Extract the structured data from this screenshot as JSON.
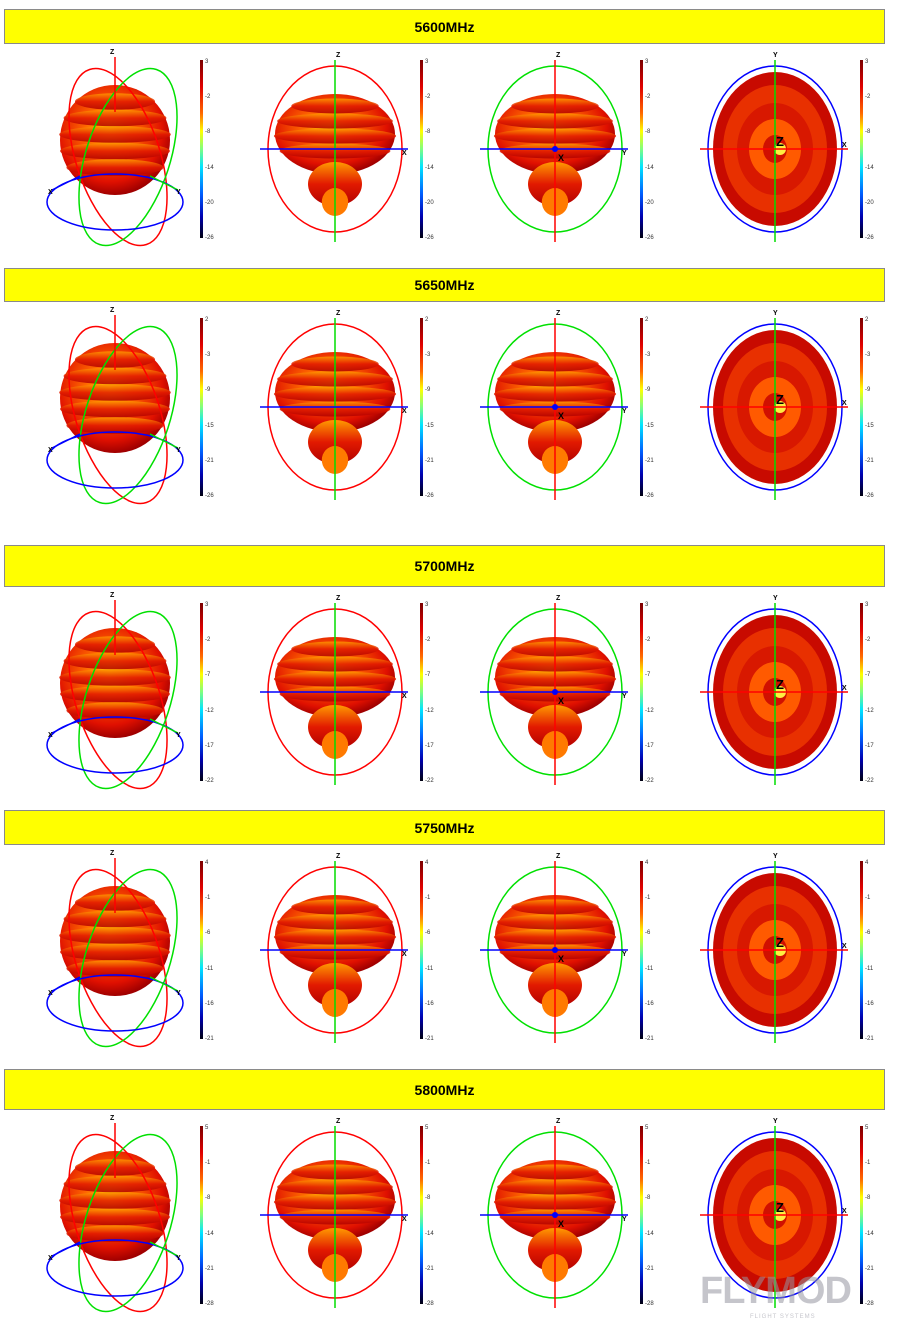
{
  "sections": [
    {
      "title": "5600MHz",
      "colorbar_ticks": [
        "3",
        "-2",
        "-8",
        "-14",
        "-20",
        "-26"
      ]
    },
    {
      "title": "5650MHz",
      "colorbar_ticks": [
        "2",
        "-3",
        "-9",
        "-15",
        "-21",
        "-26"
      ]
    },
    {
      "title": "5700MHz",
      "colorbar_ticks": [
        "3",
        "-2",
        "-7",
        "-12",
        "-17",
        "-22"
      ]
    },
    {
      "title": "5750MHz",
      "colorbar_ticks": [
        "4",
        "-1",
        "-6",
        "-11",
        "-16",
        "-21"
      ]
    },
    {
      "title": "5800MHz",
      "colorbar_ticks": [
        "5",
        "-1",
        "-8",
        "-14",
        "-21",
        "-28"
      ]
    }
  ],
  "axis_labels": {
    "x": "X",
    "y": "Y",
    "z": "Z"
  },
  "watermark": {
    "brand": "FLYMOD",
    "tagline": "FLIGHT SYSTEMS"
  },
  "colors": {
    "header": "#ffff00",
    "x_axis": "#ff0000",
    "y_axis": "#00dd00",
    "z_axis": "#0000ff"
  }
}
